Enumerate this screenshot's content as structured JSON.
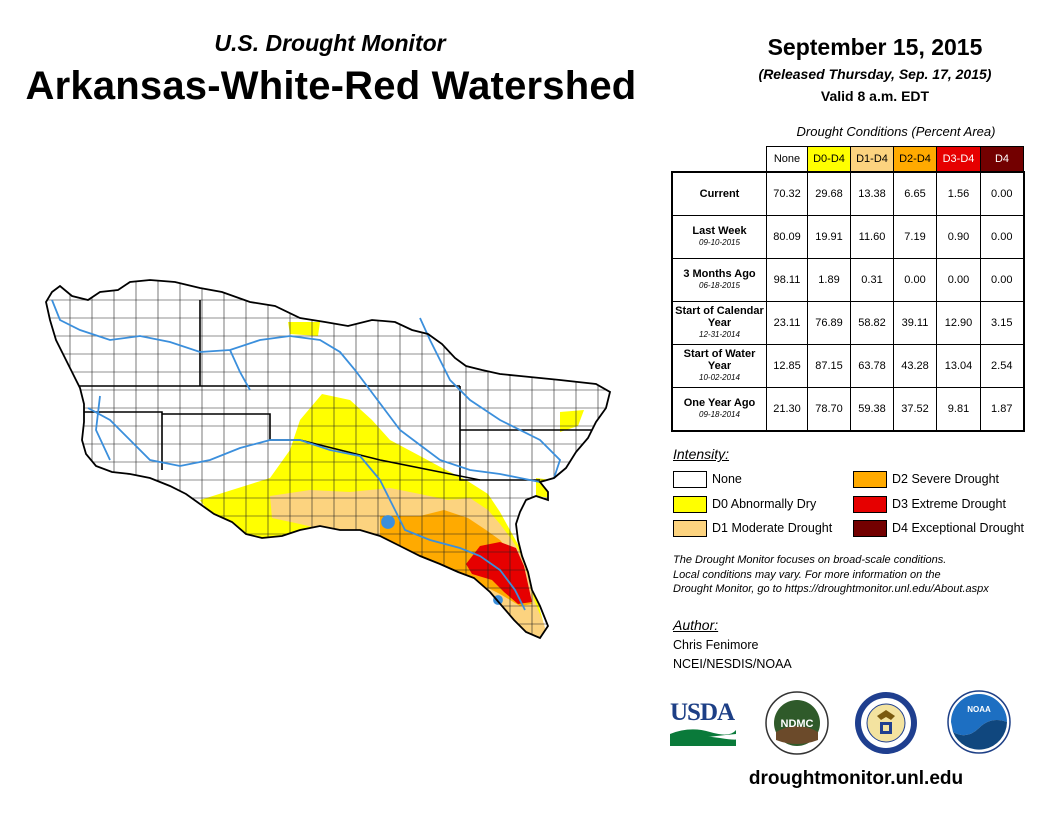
{
  "header": {
    "subtitle": "U.S. Drought Monitor",
    "title": "Arkansas-White-Red Watershed",
    "date": "September 15, 2015",
    "released": "(Released Thursday, Sep. 17, 2015)",
    "valid": "Valid 8 a.m. EDT"
  },
  "table": {
    "caption": "Drought Conditions (Percent Area)",
    "columns": [
      {
        "label": "None",
        "color": "#ffffff",
        "text_color": "#000000"
      },
      {
        "label": "D0-D4",
        "color": "#ffff00",
        "text_color": "#000000"
      },
      {
        "label": "D1-D4",
        "color": "#fcd37f",
        "text_color": "#000000"
      },
      {
        "label": "D2-D4",
        "color": "#ffaa00",
        "text_color": "#000000"
      },
      {
        "label": "D3-D4",
        "color": "#e60000",
        "text_color": "#ffffff"
      },
      {
        "label": "D4",
        "color": "#730000",
        "text_color": "#ffffff"
      }
    ],
    "rows": [
      {
        "label": "Current",
        "sublabel": "",
        "values": [
          "70.32",
          "29.68",
          "13.38",
          "6.65",
          "1.56",
          "0.00"
        ]
      },
      {
        "label": "Last Week",
        "sublabel": "09-10-2015",
        "values": [
          "80.09",
          "19.91",
          "11.60",
          "7.19",
          "0.90",
          "0.00"
        ]
      },
      {
        "label": "3 Months Ago",
        "sublabel": "06-18-2015",
        "values": [
          "98.11",
          "1.89",
          "0.31",
          "0.00",
          "0.00",
          "0.00"
        ]
      },
      {
        "label": "Start of Calendar Year",
        "sublabel": "12-31-2014",
        "values": [
          "23.11",
          "76.89",
          "58.82",
          "39.11",
          "12.90",
          "3.15"
        ]
      },
      {
        "label": "Start of Water Year",
        "sublabel": "10-02-2014",
        "values": [
          "12.85",
          "87.15",
          "63.78",
          "43.28",
          "13.04",
          "2.54"
        ]
      },
      {
        "label": "One Year Ago",
        "sublabel": "09-18-2014",
        "values": [
          "21.30",
          "78.70",
          "59.38",
          "37.52",
          "9.81",
          "1.87"
        ]
      }
    ]
  },
  "legend": {
    "title": "Intensity:",
    "items": [
      {
        "label": "None",
        "color": "#ffffff"
      },
      {
        "label": "D0 Abnormally Dry",
        "color": "#ffff00"
      },
      {
        "label": "D1 Moderate Drought",
        "color": "#fcd37f"
      },
      {
        "label": "D2 Severe Drought",
        "color": "#ffaa00"
      },
      {
        "label": "D3 Extreme Drought",
        "color": "#e60000"
      },
      {
        "label": "D4 Exceptional Drought",
        "color": "#730000"
      }
    ]
  },
  "note": {
    "line1": "The Drought Monitor focuses on broad-scale conditions.",
    "line2": "Local conditions may vary. For more information on the",
    "line3": "Drought Monitor, go to https://droughtmonitor.unl.edu/About.aspx"
  },
  "author": {
    "title": "Author:",
    "name": "Chris Fenimore",
    "org": "NCEI/NESDIS/NOAA"
  },
  "logos": {
    "usda": "USDA",
    "ndmc": "NDMC",
    "noaa": "NOAA"
  },
  "footer": {
    "url": "droughtmonitor.unl.edu"
  },
  "map": {
    "river_color": "#3b8fdc",
    "border_color": "#222222"
  }
}
